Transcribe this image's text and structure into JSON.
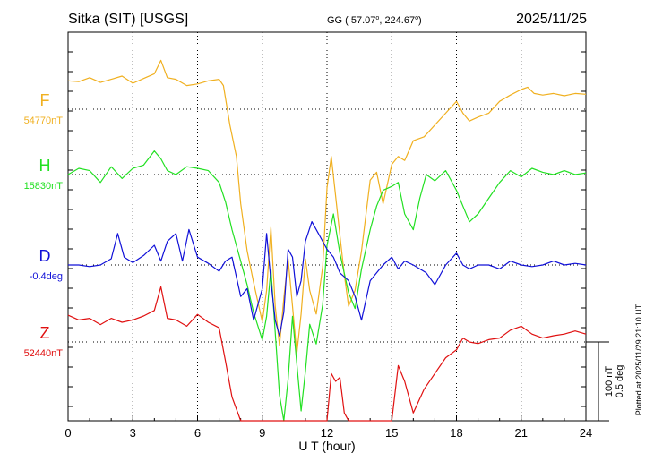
{
  "header": {
    "station": "Sitka (SIT)  [USGS]",
    "coords": "GG ( 57.07",
    "coords_lat_suffix": "o",
    "coords_mid": ", 224.67",
    "coords_lon_suffix": "o",
    "coords_end": ")",
    "date": "2025/11/25"
  },
  "footer_note": "Plotted at 2025/11/29 21:10 UT",
  "scale_bar": {
    "line1": "100 nT",
    "line2": "0.5 deg"
  },
  "colors": {
    "F": "#f0b020",
    "H": "#22e022",
    "D": "#1010d8",
    "Z": "#e01010",
    "axis": "#000000"
  },
  "chart_data": {
    "type": "line",
    "title": "Sitka (SIT)  [USGS]",
    "xlabel": "U T (hour)",
    "ylabel": "",
    "xlim": [
      0,
      24
    ],
    "x_ticks": [
      "0",
      "3",
      "6",
      "9",
      "12",
      "15",
      "18",
      "21",
      "24"
    ],
    "grid": true,
    "scale_bar": "100 nT / 0.5 deg",
    "series": [
      {
        "name": "F",
        "baseline_label": "54770nT",
        "color": "#f0b020",
        "unit": "nT",
        "baseline": 54770,
        "x": [
          0,
          0.5,
          1,
          1.5,
          2,
          2.5,
          3,
          3.5,
          4,
          4.3,
          4.6,
          5,
          5.5,
          6,
          6.5,
          7,
          7.2,
          7.5,
          7.8,
          8,
          8.3,
          8.6,
          9,
          9.2,
          9.4,
          9.6,
          9.8,
          10,
          10.2,
          10.4,
          10.6,
          10.8,
          11,
          11.2,
          11.5,
          11.8,
          12,
          12.2,
          12.4,
          12.6,
          12.8,
          13,
          13.3,
          13.6,
          14,
          14.3,
          14.6,
          15,
          15.3,
          15.6,
          16,
          16.5,
          17,
          17.5,
          18,
          18.3,
          18.6,
          19,
          19.5,
          20,
          20.5,
          21,
          21.3,
          21.6,
          22,
          22.5,
          23,
          23.5,
          24
        ],
        "y": [
          36,
          35,
          40,
          34,
          38,
          42,
          33,
          39,
          45,
          62,
          40,
          38,
          30,
          32,
          36,
          38,
          30,
          -20,
          -60,
          -120,
          -180,
          -220,
          -270,
          -230,
          -150,
          -250,
          -300,
          -240,
          -190,
          -250,
          -310,
          -260,
          -190,
          -230,
          -260,
          -200,
          -100,
          -60,
          -110,
          -160,
          -210,
          -250,
          -230,
          -180,
          -90,
          -80,
          -120,
          -70,
          -60,
          -65,
          -40,
          -35,
          -20,
          -5,
          10,
          -5,
          -15,
          -10,
          -5,
          10,
          18,
          25,
          28,
          20,
          18,
          20,
          17,
          20,
          19
        ]
      },
      {
        "name": "H",
        "baseline_label": "15830nT",
        "color": "#22e022",
        "unit": "nT",
        "baseline": 15830,
        "x": [
          0,
          0.5,
          1,
          1.5,
          2,
          2.5,
          3,
          3.5,
          4,
          4.3,
          4.6,
          5,
          5.5,
          6,
          6.5,
          7,
          7.3,
          7.6,
          8,
          8.3,
          8.6,
          9,
          9.2,
          9.4,
          9.6,
          9.8,
          10,
          10.2,
          10.4,
          10.6,
          10.8,
          11,
          11.2,
          11.5,
          11.8,
          12,
          12.3,
          12.6,
          13,
          13.3,
          13.6,
          14,
          14.3,
          14.6,
          15,
          15.3,
          15.6,
          16,
          16.3,
          16.6,
          17,
          17.5,
          18,
          18.3,
          18.6,
          19,
          19.5,
          20,
          20.5,
          21,
          21.5,
          22,
          22.5,
          23,
          23.5,
          24
        ],
        "y": [
          0,
          8,
          5,
          -10,
          10,
          -5,
          8,
          12,
          30,
          20,
          5,
          0,
          10,
          8,
          5,
          -10,
          -35,
          -70,
          -110,
          -140,
          -175,
          -210,
          -180,
          -120,
          -200,
          -280,
          -320,
          -260,
          -180,
          -240,
          -300,
          -250,
          -190,
          -215,
          -165,
          -90,
          -50,
          -100,
          -150,
          -170,
          -120,
          -70,
          -40,
          -20,
          -15,
          -10,
          -50,
          -70,
          -30,
          0,
          -8,
          5,
          -20,
          -40,
          -60,
          -50,
          -30,
          -10,
          5,
          -3,
          8,
          3,
          0,
          5,
          0,
          2
        ]
      },
      {
        "name": "D",
        "baseline_label": "-0.4deg",
        "color": "#1010d8",
        "unit": "deg",
        "baseline": -0.4,
        "x": [
          0,
          0.5,
          1,
          1.5,
          2,
          2.3,
          2.6,
          3,
          3.5,
          4,
          4.3,
          4.6,
          5,
          5.3,
          5.6,
          6,
          6.5,
          7,
          7.3,
          7.6,
          8,
          8.3,
          8.6,
          9,
          9.2,
          9.4,
          9.6,
          9.8,
          10,
          10.2,
          10.4,
          10.6,
          10.8,
          11,
          11.3,
          11.6,
          12,
          12.3,
          12.6,
          13,
          13.3,
          13.6,
          14,
          14.3,
          14.6,
          15,
          15.3,
          15.6,
          16,
          16.3,
          16.6,
          17,
          17.5,
          18,
          18.3,
          18.6,
          19,
          19.5,
          20,
          20.5,
          21,
          21.5,
          22,
          22.5,
          23,
          23.5,
          24
        ],
        "y": [
          0,
          0,
          -2,
          0,
          8,
          40,
          10,
          3,
          12,
          25,
          5,
          30,
          40,
          5,
          45,
          10,
          2,
          -8,
          5,
          10,
          -40,
          -30,
          -70,
          -30,
          40,
          -20,
          -70,
          -90,
          -60,
          20,
          10,
          -40,
          -20,
          30,
          55,
          40,
          20,
          10,
          -10,
          -20,
          -40,
          -70,
          -20,
          -10,
          0,
          10,
          -5,
          5,
          0,
          -5,
          -10,
          -25,
          0,
          15,
          0,
          -5,
          0,
          0,
          -5,
          5,
          0,
          -2,
          0,
          5,
          0,
          2,
          0
        ]
      },
      {
        "name": "Z",
        "baseline_label": "52440nT",
        "color": "#e01010",
        "unit": "nT",
        "baseline": 52440,
        "x": [
          0,
          0.5,
          1,
          1.5,
          2,
          2.5,
          3,
          3.5,
          4,
          4.3,
          4.6,
          5,
          5.5,
          6,
          6.5,
          7,
          7.3,
          7.6,
          8,
          8.3,
          8.6,
          9,
          9.3,
          9.6,
          10,
          10.5,
          11,
          11.5,
          12,
          12.2,
          12.4,
          12.6,
          12.8,
          13,
          13.5,
          14,
          14.5,
          15,
          15.3,
          15.6,
          16,
          16.5,
          17,
          17.5,
          18,
          18.3,
          18.6,
          19,
          19.5,
          20,
          20.5,
          21,
          21.5,
          22,
          22.5,
          23,
          23.5,
          24
        ],
        "y": [
          34,
          28,
          30,
          22,
          30,
          25,
          28,
          33,
          40,
          70,
          30,
          28,
          20,
          35,
          25,
          18,
          -25,
          -70,
          -130,
          -190,
          -250,
          -260,
          -260,
          -260,
          -260,
          -260,
          -260,
          -260,
          -200,
          -40,
          -50,
          -45,
          -90,
          -180,
          -200,
          -210,
          -200,
          -160,
          -30,
          -50,
          -90,
          -60,
          -40,
          -20,
          -10,
          5,
          0,
          -2,
          3,
          5,
          15,
          20,
          10,
          5,
          8,
          10,
          14,
          10
        ]
      }
    ]
  }
}
